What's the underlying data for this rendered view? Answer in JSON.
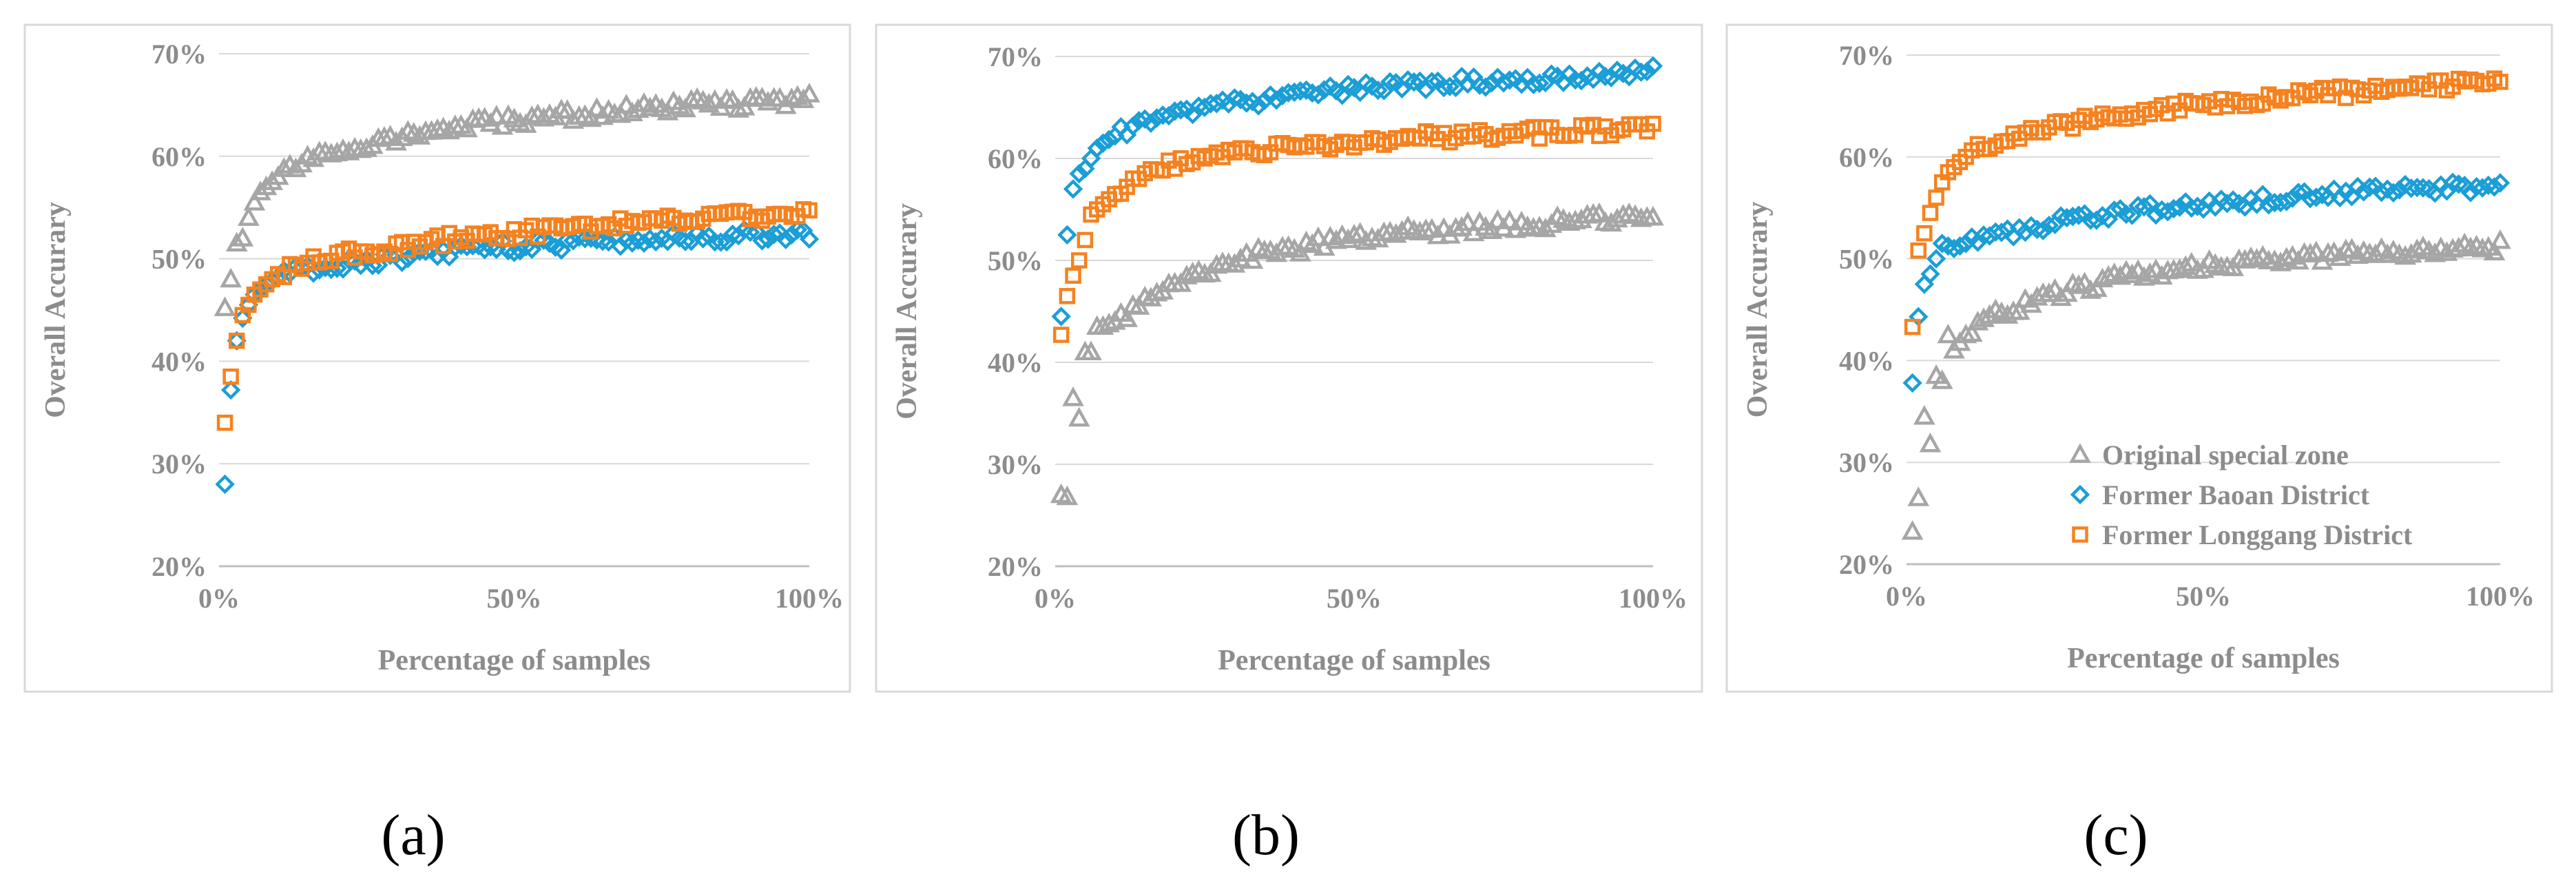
{
  "colors": {
    "original": "#a6a6a6",
    "baoan": "#1b9ed6",
    "longgang": "#f58220",
    "axis_text": "#8c8c8c",
    "grid": "#d9d9d9"
  },
  "chart_data": [
    {
      "type": "scatter",
      "panel": "a",
      "caption": "(a)",
      "xlabel": "Percentage of samples",
      "ylabel": "Overall Accurary",
      "xlim": [
        0,
        100
      ],
      "ylim": [
        20,
        70
      ],
      "xticks": [
        "0%",
        "50%",
        "100%"
      ],
      "yticks": [
        "20%",
        "30%",
        "40%",
        "50%",
        "60%",
        "70%"
      ],
      "series": [
        {
          "name": "Original special zone",
          "marker": "triangle",
          "anchors": [
            [
              1,
              45.2
            ],
            [
              2,
              48.0
            ],
            [
              3,
              51.5
            ],
            [
              4,
              52.0
            ],
            [
              5,
              54.0
            ],
            [
              6,
              55.5
            ],
            [
              7,
              56.5
            ],
            [
              8,
              57.0
            ],
            [
              10,
              58.0
            ],
            [
              12,
              58.8
            ],
            [
              15,
              59.5
            ],
            [
              20,
              60.5
            ],
            [
              25,
              61.2
            ],
            [
              30,
              61.8
            ],
            [
              35,
              62.3
            ],
            [
              40,
              62.8
            ],
            [
              45,
              63.2
            ],
            [
              50,
              63.5
            ],
            [
              55,
              63.8
            ],
            [
              60,
              64.0
            ],
            [
              70,
              64.5
            ],
            [
              80,
              65.0
            ],
            [
              90,
              65.2
            ],
            [
              100,
              65.5
            ]
          ]
        },
        {
          "name": "Former Baoan District",
          "marker": "diamond",
          "anchors": [
            [
              1,
              28.0
            ],
            [
              2,
              37.2
            ],
            [
              3,
              42.0
            ],
            [
              4,
              44.2
            ],
            [
              5,
              45.5
            ],
            [
              6,
              46.5
            ],
            [
              8,
              47.5
            ],
            [
              10,
              48.2
            ],
            [
              15,
              49.0
            ],
            [
              20,
              49.5
            ],
            [
              30,
              50.0
            ],
            [
              40,
              50.8
            ],
            [
              50,
              51.2
            ],
            [
              60,
              51.5
            ],
            [
              70,
              51.8
            ],
            [
              80,
              52.0
            ],
            [
              90,
              52.3
            ],
            [
              100,
              52.5
            ]
          ]
        },
        {
          "name": "Former Longgang District",
          "marker": "square",
          "anchors": [
            [
              1,
              34.0
            ],
            [
              2,
              38.5
            ],
            [
              3,
              42.0
            ],
            [
              4,
              44.5
            ],
            [
              5,
              45.5
            ],
            [
              6,
              46.5
            ],
            [
              8,
              47.5
            ],
            [
              10,
              48.5
            ],
            [
              15,
              49.5
            ],
            [
              20,
              50.3
            ],
            [
              30,
              51.0
            ],
            [
              40,
              52.0
            ],
            [
              50,
              52.5
            ],
            [
              60,
              53.0
            ],
            [
              70,
              53.5
            ],
            [
              80,
              54.0
            ],
            [
              90,
              54.2
            ],
            [
              100,
              54.5
            ]
          ]
        }
      ]
    },
    {
      "type": "scatter",
      "panel": "b",
      "caption": "(b)",
      "xlabel": "Percentage of samples",
      "ylabel": "Overall Accurary",
      "xlim": [
        0,
        100
      ],
      "ylim": [
        20,
        70
      ],
      "xticks": [
        "0%",
        "50%",
        "100%"
      ],
      "yticks": [
        "20%",
        "30%",
        "40%",
        "50%",
        "60%",
        "70%"
      ],
      "series": [
        {
          "name": "Original special zone",
          "marker": "triangle",
          "anchors": [
            [
              1,
              27.0
            ],
            [
              2,
              26.8
            ],
            [
              3,
              36.5
            ],
            [
              4,
              34.5
            ],
            [
              5,
              41.0
            ],
            [
              6,
              41.0
            ],
            [
              7,
              43.5
            ],
            [
              8,
              43.5
            ],
            [
              10,
              44.0
            ],
            [
              12,
              44.5
            ],
            [
              15,
              46.0
            ],
            [
              20,
              48.0
            ],
            [
              25,
              49.0
            ],
            [
              30,
              50.0
            ],
            [
              35,
              50.8
            ],
            [
              40,
              51.0
            ],
            [
              45,
              51.8
            ],
            [
              50,
              52.2
            ],
            [
              60,
              52.8
            ],
            [
              70,
              53.2
            ],
            [
              80,
              53.5
            ],
            [
              90,
              54.0
            ],
            [
              100,
              54.0
            ]
          ]
        },
        {
          "name": "Former Baoan District",
          "marker": "diamond",
          "anchors": [
            [
              1,
              44.5
            ],
            [
              2,
              52.5
            ],
            [
              3,
              57.0
            ],
            [
              4,
              58.5
            ],
            [
              5,
              59.0
            ],
            [
              6,
              60.0
            ],
            [
              7,
              61.0
            ],
            [
              8,
              61.5
            ],
            [
              10,
              62.2
            ],
            [
              12,
              62.8
            ],
            [
              15,
              63.5
            ],
            [
              20,
              64.3
            ],
            [
              25,
              65.0
            ],
            [
              30,
              65.5
            ],
            [
              35,
              65.8
            ],
            [
              40,
              66.2
            ],
            [
              50,
              66.8
            ],
            [
              60,
              67.2
            ],
            [
              70,
              67.5
            ],
            [
              80,
              67.8
            ],
            [
              90,
              68.2
            ],
            [
              100,
              68.5
            ]
          ]
        },
        {
          "name": "Former Longgang District",
          "marker": "square",
          "anchors": [
            [
              1,
              42.7
            ],
            [
              2,
              46.5
            ],
            [
              3,
              48.5
            ],
            [
              4,
              50.0
            ],
            [
              5,
              52.0
            ],
            [
              6,
              54.5
            ],
            [
              8,
              55.5
            ],
            [
              10,
              56.5
            ],
            [
              12,
              57.5
            ],
            [
              15,
              58.5
            ],
            [
              20,
              59.5
            ],
            [
              25,
              60.0
            ],
            [
              30,
              60.5
            ],
            [
              35,
              60.8
            ],
            [
              40,
              61.2
            ],
            [
              50,
              61.5
            ],
            [
              60,
              62.0
            ],
            [
              70,
              62.3
            ],
            [
              80,
              62.5
            ],
            [
              90,
              62.8
            ],
            [
              100,
              62.8
            ]
          ]
        }
      ]
    },
    {
      "type": "scatter",
      "panel": "c",
      "caption": "(c)",
      "xlabel": "Percentage of samples",
      "ylabel": "Overall Accurary",
      "xlim": [
        0,
        100
      ],
      "ylim": [
        20,
        70
      ],
      "xticks": [
        "0%",
        "50%",
        "100%"
      ],
      "yticks": [
        "20%",
        "30%",
        "40%",
        "50%",
        "60%",
        "70%"
      ],
      "legend_position": "inside-lower-right",
      "series": [
        {
          "name": "Original special zone",
          "marker": "triangle",
          "anchors": [
            [
              1,
              23.2
            ],
            [
              2,
              26.5
            ],
            [
              3,
              34.5
            ],
            [
              4,
              31.8
            ],
            [
              5,
              38.5
            ],
            [
              6,
              38.0
            ],
            [
              7,
              42.5
            ],
            [
              8,
              41.0
            ],
            [
              10,
              42.5
            ],
            [
              12,
              43.5
            ],
            [
              15,
              44.5
            ],
            [
              20,
              45.5
            ],
            [
              25,
              46.5
            ],
            [
              30,
              47.3
            ],
            [
              35,
              48.0
            ],
            [
              40,
              48.5
            ],
            [
              45,
              49.0
            ],
            [
              50,
              49.3
            ],
            [
              60,
              49.8
            ],
            [
              70,
              50.2
            ],
            [
              80,
              50.5
            ],
            [
              90,
              51.0
            ],
            [
              100,
              51.2
            ]
          ]
        },
        {
          "name": "Former Baoan District",
          "marker": "diamond",
          "anchors": [
            [
              1,
              37.8
            ],
            [
              2,
              44.3
            ],
            [
              3,
              47.5
            ],
            [
              4,
              48.5
            ],
            [
              5,
              50.0
            ],
            [
              6,
              51.5
            ],
            [
              8,
              51.0
            ],
            [
              10,
              51.5
            ],
            [
              15,
              52.3
            ],
            [
              20,
              53.0
            ],
            [
              30,
              54.0
            ],
            [
              40,
              54.8
            ],
            [
              50,
              55.3
            ],
            [
              60,
              55.8
            ],
            [
              70,
              56.3
            ],
            [
              80,
              56.8
            ],
            [
              90,
              57.0
            ],
            [
              100,
              57.2
            ]
          ]
        },
        {
          "name": "Former Longgang District",
          "marker": "square",
          "anchors": [
            [
              1,
              43.3
            ],
            [
              2,
              50.8
            ],
            [
              3,
              52.5
            ],
            [
              4,
              54.5
            ],
            [
              5,
              56.0
            ],
            [
              6,
              57.5
            ],
            [
              7,
              58.5
            ],
            [
              8,
              59.0
            ],
            [
              10,
              60.0
            ],
            [
              12,
              60.8
            ],
            [
              15,
              61.5
            ],
            [
              20,
              62.3
            ],
            [
              25,
              63.0
            ],
            [
              30,
              63.5
            ],
            [
              35,
              64.0
            ],
            [
              40,
              64.5
            ],
            [
              50,
              65.2
            ],
            [
              60,
              65.7
            ],
            [
              70,
              66.2
            ],
            [
              80,
              66.6
            ],
            [
              90,
              67.0
            ],
            [
              100,
              67.3
            ]
          ]
        }
      ]
    }
  ]
}
